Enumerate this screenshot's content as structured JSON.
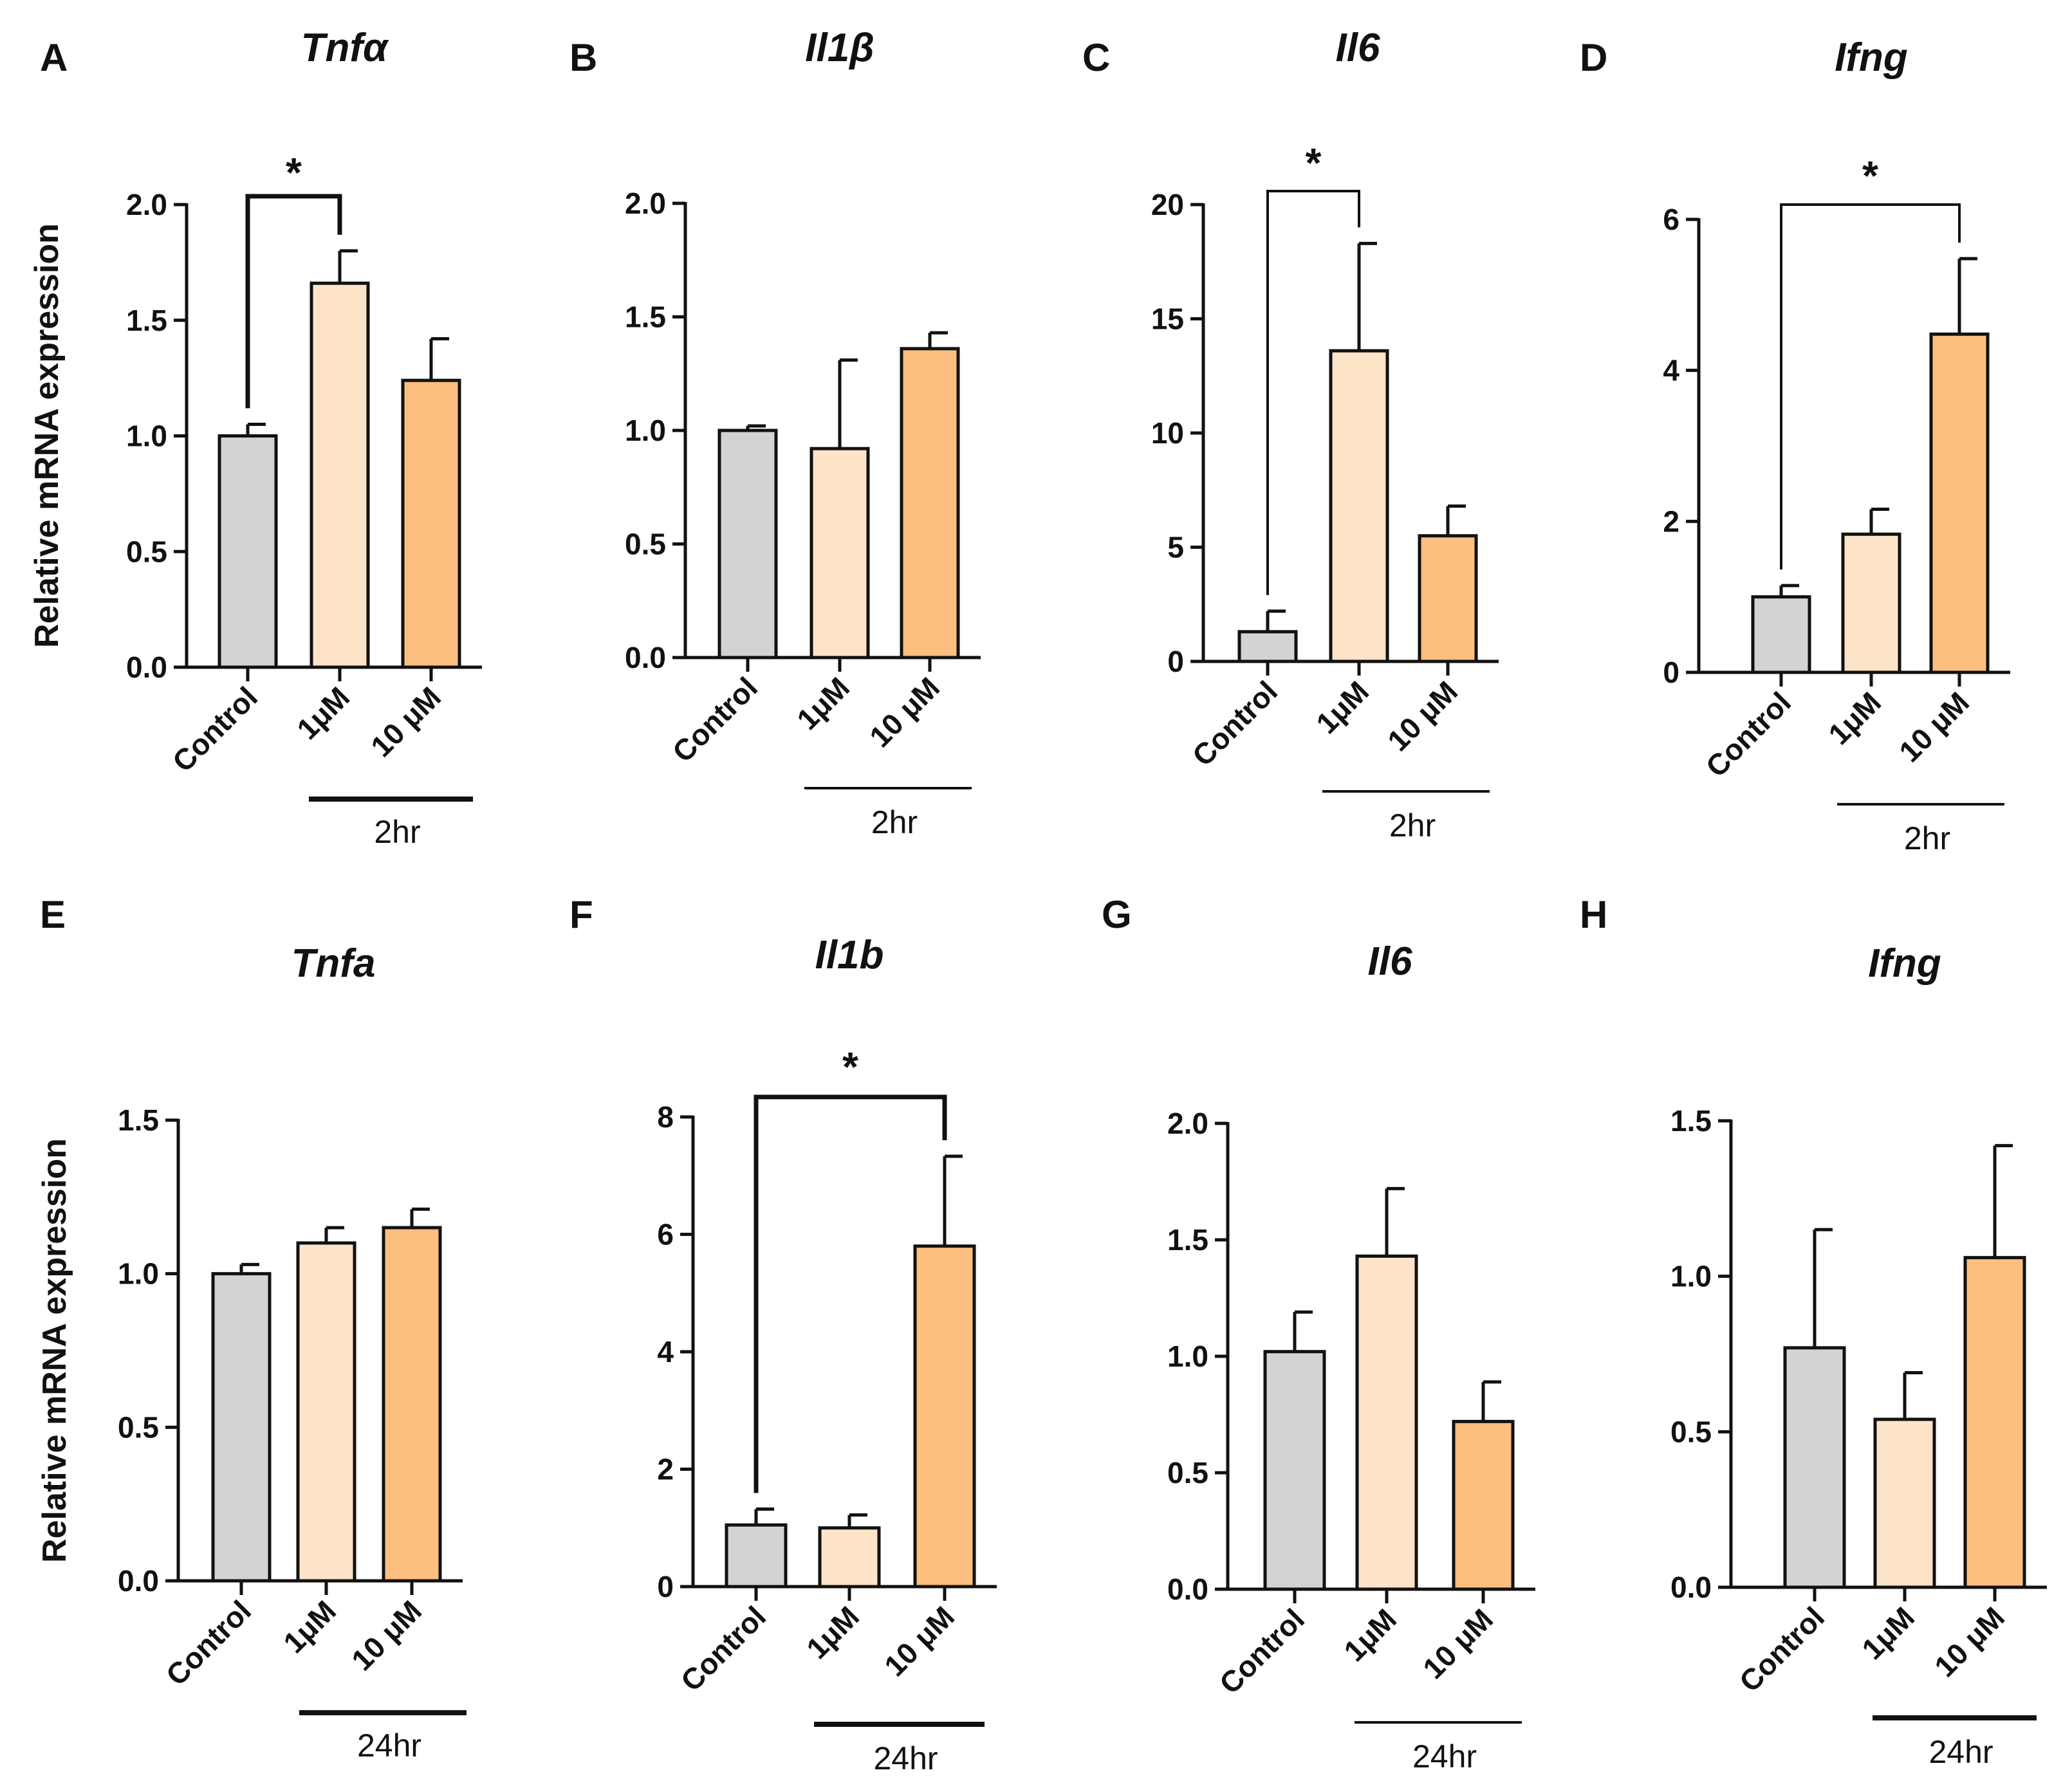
{
  "colors": {
    "control": "#d3d3d3",
    "low": "#fde3c8",
    "high": "#fdbf7f",
    "stroke": "#111111"
  },
  "y_axis_label": "Relative mRNA expression",
  "chart_data": [
    {
      "type": "bar",
      "panel": "A",
      "title": "Tnfα",
      "categories": [
        "Control",
        "1μM",
        "10 μM"
      ],
      "values": [
        1.0,
        1.66,
        1.24
      ],
      "errors": [
        0.05,
        0.14,
        0.18
      ],
      "ylim": [
        0,
        2.0
      ],
      "yticks": [
        0.0,
        0.5,
        1.0,
        1.5,
        2.0
      ],
      "tick_format": "0.0",
      "time_label": "2hr",
      "significance": {
        "from": 0,
        "to": 1,
        "label": "*"
      },
      "ylabel": "Relative mRNA expression"
    },
    {
      "type": "bar",
      "panel": "B",
      "title": "Il1β",
      "categories": [
        "Control",
        "1μM",
        "10 μM"
      ],
      "values": [
        1.0,
        0.92,
        1.36
      ],
      "errors": [
        0.02,
        0.39,
        0.07
      ],
      "ylim": [
        0,
        2.0
      ],
      "yticks": [
        0.0,
        0.5,
        1.0,
        1.5,
        2.0
      ],
      "tick_format": "0.0",
      "time_label": "2hr",
      "significance": null,
      "ylabel": ""
    },
    {
      "type": "bar",
      "panel": "C",
      "title": "Il6",
      "categories": [
        "Control",
        "1μM",
        "10 μM"
      ],
      "values": [
        1.3,
        13.6,
        5.5
      ],
      "errors": [
        0.9,
        4.7,
        1.3
      ],
      "ylim": [
        0,
        20
      ],
      "yticks": [
        0,
        5,
        10,
        15,
        20
      ],
      "tick_format": "0",
      "time_label": "2hr",
      "significance": {
        "from": 0,
        "to": 1,
        "label": "*"
      },
      "ylabel": ""
    },
    {
      "type": "bar",
      "panel": "D",
      "title": "Ifng",
      "categories": [
        "Control",
        "1μM",
        "10 μM"
      ],
      "values": [
        1.0,
        1.83,
        4.48
      ],
      "errors": [
        0.15,
        0.33,
        1.0
      ],
      "ylim": [
        0,
        6
      ],
      "yticks": [
        0,
        2,
        4,
        6
      ],
      "tick_format": "0",
      "time_label": "2hr",
      "significance": {
        "from": 0,
        "to": 2,
        "label": "*"
      },
      "ylabel": ""
    },
    {
      "type": "bar",
      "panel": "E",
      "title": "Tnfa",
      "categories": [
        "Control",
        "1μM",
        "10 μM"
      ],
      "values": [
        1.0,
        1.1,
        1.15
      ],
      "errors": [
        0.03,
        0.05,
        0.06
      ],
      "ylim": [
        0,
        1.5
      ],
      "yticks": [
        0.0,
        0.5,
        1.0,
        1.5
      ],
      "tick_format": "0.0",
      "time_label": "24hr",
      "significance": null,
      "ylabel": "Relative mRNA expression"
    },
    {
      "type": "bar",
      "panel": "F",
      "title": "Il1b",
      "categories": [
        "Control",
        "1μM",
        "10 μM"
      ],
      "values": [
        1.05,
        1.0,
        5.8
      ],
      "errors": [
        0.27,
        0.22,
        1.53
      ],
      "ylim": [
        0,
        8
      ],
      "yticks": [
        0,
        2,
        4,
        6,
        8
      ],
      "tick_format": "0",
      "time_label": "24hr",
      "significance": {
        "from": 0,
        "to": 2,
        "label": "*"
      },
      "ylabel": ""
    },
    {
      "type": "bar",
      "panel": "G",
      "title": "Il6",
      "categories": [
        "Control",
        "1μM",
        "10 μM"
      ],
      "values": [
        1.02,
        1.43,
        0.72
      ],
      "errors": [
        0.17,
        0.29,
        0.17
      ],
      "ylim": [
        0,
        2.0
      ],
      "yticks": [
        0.0,
        0.5,
        1.0,
        1.5,
        2.0
      ],
      "tick_format": "0.0",
      "time_label": "24hr",
      "significance": null,
      "ylabel": ""
    },
    {
      "type": "bar",
      "panel": "H",
      "title": "Ifng",
      "categories": [
        "Control",
        "1μM",
        "10 μM"
      ],
      "values": [
        0.77,
        0.54,
        1.06
      ],
      "errors": [
        0.38,
        0.15,
        0.36
      ],
      "ylim": [
        0,
        1.5
      ],
      "yticks": [
        0.0,
        0.5,
        1.0,
        1.5
      ],
      "tick_format": "0.0",
      "time_label": "24hr",
      "significance": null,
      "ylabel": ""
    }
  ]
}
